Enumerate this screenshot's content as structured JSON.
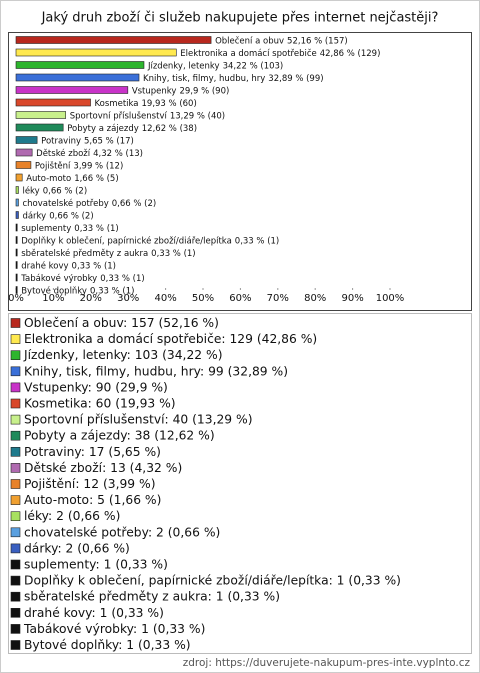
{
  "chart_data": {
    "type": "hbar",
    "title": "Jaký druh zboží či služeb nakupujete přes internet nejčastěji?",
    "categories": [
      "Oblečení a obuv",
      "Elektronika a domácí spotřebiče",
      "Jízdenky, letenky",
      "Knihy, tisk, filmy, hudbu, hry",
      "Vstupenky",
      "Kosmetika",
      "Sportovní příslušenství",
      "Pobyty a zájezdy",
      "Potraviny",
      "Dětské zboží",
      "Pojištění",
      "Auto-moto",
      "léky",
      "chovatelské potřeby",
      "dárky",
      "suplementy",
      "Doplňky k oblečení, papírnické zboží/diáře/lepítka",
      "sběratelské předměty z aukra",
      "drahé kovy",
      "Tabákové výrobky",
      "Bytové doplňky"
    ],
    "values": [
      52.16,
      42.86,
      34.22,
      32.89,
      29.9,
      19.93,
      13.29,
      12.62,
      5.65,
      4.32,
      3.99,
      1.66,
      0.66,
      0.66,
      0.66,
      0.33,
      0.33,
      0.33,
      0.33,
      0.33,
      0.33
    ],
    "value_labels": [
      "52,16 % (157)",
      "42,86 % (129)",
      "34,22 % (103)",
      "32,89 % (99)",
      "29,9 % (90)",
      "19,93 % (60)",
      "13,29 % (40)",
      "12,62 % (38)",
      "5,65 % (17)",
      "4,32 % (13)",
      "3,99 % (12)",
      "1,66 % (5)",
      "0,66 % (2)",
      "0,66 % (2)",
      "0,66 % (2)",
      "0,33 % (1)",
      "0,33 % (1)",
      "0,33 % (1)",
      "0,33 % (1)",
      "0,33 % (1)",
      "0,33 % (1)"
    ],
    "legend_labels": [
      "Oblečení a obuv: 157 (52,16 %)",
      "Elektronika a domácí spotřebiče: 129 (42,86 %)",
      "Jízdenky, letenky: 103 (34,22 %)",
      "Knihy, tisk, filmy, hudbu, hry: 99 (32,89 %)",
      "Vstupenky: 90 (29,9 %)",
      "Kosmetika: 60 (19,93 %)",
      "Sportovní příslušenství: 40 (13,29 %)",
      "Pobyty a zájezdy: 38 (12,62 %)",
      "Potraviny: 17 (5,65 %)",
      "Dětské zboží: 13 (4,32 %)",
      "Pojištění: 12 (3,99 %)",
      "Auto-moto: 5 (1,66 %)",
      "léky: 2 (0,66 %)",
      "chovatelské potřeby: 2 (0,66 %)",
      "dárky: 2 (0,66 %)",
      "suplementy: 1 (0,33 %)",
      "Doplňky k oblečení, papírnické zboží/diáře/lepítka: 1 (0,33 %)",
      "sběratelské předměty z aukra: 1 (0,33 %)",
      "drahé kovy: 1 (0,33 %)",
      "Tabákové výrobky: 1 (0,33 %)",
      "Bytové doplňky: 1 (0,33 %)"
    ],
    "colors": [
      "#b8281e",
      "#ffe94f",
      "#2db52d",
      "#3a6fd8",
      "#c833c8",
      "#d9482b",
      "#c8f08c",
      "#1f8a5a",
      "#1f7a8c",
      "#b06ab0",
      "#e8822a",
      "#f0a030",
      "#a8e060",
      "#5aa0e0",
      "#3a5fc0",
      "#111111",
      "#111111",
      "#111111",
      "#111111",
      "#111111",
      "#111111"
    ],
    "xlim": [
      0,
      100
    ],
    "xticks": [
      {
        "value": 0,
        "label": "0%"
      },
      {
        "value": 10,
        "label": "10%"
      },
      {
        "value": 20,
        "label": "20%"
      },
      {
        "value": 30,
        "label": "30%"
      },
      {
        "value": 40,
        "label": "40%"
      },
      {
        "value": 50,
        "label": "50%"
      },
      {
        "value": 60,
        "label": "60%"
      },
      {
        "value": 70,
        "label": "70%"
      },
      {
        "value": 80,
        "label": "80%"
      },
      {
        "value": 90,
        "label": "90%"
      },
      {
        "value": 100,
        "label": "100%"
      }
    ],
    "source": "zdroj: https://duverujete-nakupum-pres-inte.vyplnto.cz"
  }
}
